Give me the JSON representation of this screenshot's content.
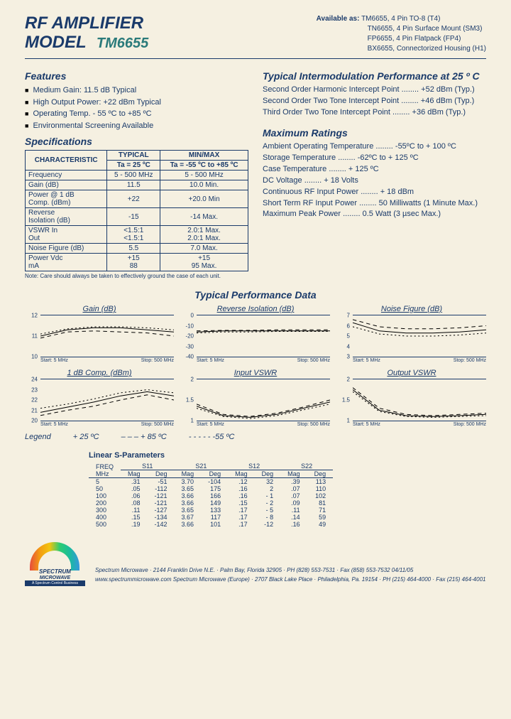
{
  "header": {
    "title_line1": "RF AMPLIFIER",
    "title_line2": "MODEL",
    "model": "TM6655",
    "available_label": "Available as:",
    "available": [
      "TM6655, 4 Pin TO-8 (T4)",
      "TN6655, 4 Pin Surface Mount (SM3)",
      "FP6655, 4 Pin Flatpack (FP4)",
      "BX6655, Connectorized Housing (H1)"
    ]
  },
  "features": {
    "title": "Features",
    "items": [
      "Medium Gain: 11.5 dB Typical",
      "High Output Power: +22 dBm Typical",
      "Operating Temp. - 55 ºC to +85 ºC",
      "Environmental Screening Available"
    ]
  },
  "specs": {
    "title": "Specifications",
    "head": [
      "CHARACTERISTIC",
      "TYPICAL",
      "MIN/MAX"
    ],
    "subhead": [
      "Ta = 25 ºC",
      "Ta = -55 ºC to +85 ºC"
    ],
    "rows": [
      [
        "Frequency",
        "5 - 500 MHz",
        "5 - 500 MHz"
      ],
      [
        "Gain (dB)",
        "11.5",
        "10.0 Min."
      ],
      [
        "Power @ 1 dB\n  Comp. (dBm)",
        "+22",
        "+20.0 Min"
      ],
      [
        "Reverse\n  Isolation (dB)",
        "-15",
        "-14 Max."
      ],
      [
        "VSWR    In\n         Out",
        "<1.5:1\n<1.5:1",
        "2.0:1 Max.\n2.0:1 Max."
      ],
      [
        "Noise Figure (dB)",
        "5.5",
        "7.0 Max."
      ],
      [
        "Power    Vdc\n          mA",
        "+15\n88",
        "+15\n95 Max."
      ]
    ],
    "note": "Note: Care should always be taken to effectively ground the case of each unit."
  },
  "intermod": {
    "title": "Typical Intermodulation Performance at 25 º C",
    "rows": [
      [
        "Second Order Harmonic Intercept Point",
        "+52 dBm (Typ.)"
      ],
      [
        "Second Order Two Tone Intercept Point",
        "+46 dBm (Typ.)"
      ],
      [
        "Third Order Two Tone Intercept Point",
        "+36 dBm (Typ.)"
      ]
    ]
  },
  "maxratings": {
    "title": "Maximum Ratings",
    "rows": [
      [
        "Ambient Operating Temperature",
        "-55ºC to + 100 ºC"
      ],
      [
        "Storage Temperature",
        "-62ºC to + 125 ºC"
      ],
      [
        "Case Temperature",
        "+ 125 ºC"
      ],
      [
        "DC Voltage",
        "+ 18 Volts"
      ],
      [
        "Continuous RF Input Power",
        "+ 18 dBm"
      ],
      [
        "Short Term RF Input Power",
        "50 Milliwatts (1 Minute Max.)"
      ],
      [
        "Maximum Peak Power",
        "0.5 Watt (3 µsec Max.)"
      ]
    ]
  },
  "perf_title": "Typical Performance Data",
  "charts": {
    "xlabel_start": "Start: 5 MHz",
    "xlabel_stop": "Stop: 500 MHz",
    "line_color_solid": "#000000",
    "line_color_dash": "#000000",
    "line_color_dot": "#000000",
    "chart_border_color": "#1a3a6a",
    "gain": {
      "title": "Gain (dB)",
      "ymin": 10,
      "ymax": 12,
      "yticks": [
        10,
        11,
        12
      ],
      "series25": [
        11.0,
        11.3,
        11.4,
        11.4,
        11.3,
        11.2
      ],
      "series85": [
        10.9,
        11.2,
        11.25,
        11.2,
        11.15,
        11.0
      ],
      "seriesm55": [
        11.1,
        11.35,
        11.45,
        11.45,
        11.4,
        11.3
      ]
    },
    "reviso": {
      "title": "Reverse Isolation (dB)",
      "ymin": -40,
      "ymax": 0,
      "yticks": [
        0,
        -10,
        -20,
        -30,
        -40
      ],
      "series25": [
        -16,
        -15,
        -15,
        -15,
        -15,
        -15
      ],
      "series85": [
        -15,
        -14.5,
        -14.5,
        -14,
        -14,
        -14
      ],
      "seriesm55": [
        -17,
        -16,
        -16,
        -15.5,
        -15.5,
        -15.5
      ]
    },
    "nf": {
      "title": "Noise Figure (dB)",
      "ymin": 3,
      "ymax": 7,
      "yticks": [
        3,
        4,
        5,
        6,
        7
      ],
      "series25": [
        6.3,
        5.5,
        5.3,
        5.3,
        5.4,
        5.6
      ],
      "series85": [
        6.6,
        5.9,
        5.7,
        5.7,
        5.8,
        6.0
      ],
      "seriesm55": [
        5.9,
        5.2,
        5.0,
        5.0,
        5.1,
        5.3
      ]
    },
    "comp": {
      "title": "1 dB Comp. (dBm)",
      "ymin": 20,
      "ymax": 24,
      "yticks": [
        20,
        21,
        22,
        23,
        24
      ],
      "series25": [
        20.8,
        21.3,
        21.8,
        22.4,
        22.8,
        22.4
      ],
      "series85": [
        20.5,
        21.0,
        21.4,
        22.0,
        22.5,
        22.0
      ],
      "seriesm55": [
        21.2,
        21.6,
        22.1,
        22.7,
        23.0,
        22.7
      ]
    },
    "invswr": {
      "title": "Input VSWR",
      "ymin": 1.0,
      "ymax": 2.0,
      "yticks": [
        1.0,
        1.5,
        2.0
      ],
      "series25": [
        1.35,
        1.12,
        1.08,
        1.15,
        1.3,
        1.45
      ],
      "series85": [
        1.4,
        1.15,
        1.1,
        1.18,
        1.33,
        1.5
      ],
      "seriesm55": [
        1.3,
        1.1,
        1.05,
        1.12,
        1.26,
        1.4
      ]
    },
    "outvswr": {
      "title": "Output VSWR",
      "ymin": 1.0,
      "ymax": 2.0,
      "yticks": [
        1.0,
        1.5,
        2.0
      ],
      "series25": [
        1.75,
        1.25,
        1.12,
        1.1,
        1.12,
        1.15
      ],
      "series85": [
        1.8,
        1.3,
        1.15,
        1.12,
        1.15,
        1.18
      ],
      "seriesm55": [
        1.7,
        1.22,
        1.1,
        1.08,
        1.1,
        1.12
      ]
    }
  },
  "legend": {
    "label": "Legend",
    "items": [
      "+ 25 ºC",
      "– – –  + 85 ºC",
      "- - - - -  -55 ºC"
    ]
  },
  "sparams": {
    "title": "Linear S-Parameters",
    "groups": [
      "S11",
      "S21",
      "S12",
      "S22"
    ],
    "sub": [
      "Mag",
      "Deg"
    ],
    "freq_label": "FREQ\nMHz",
    "rows": [
      [
        5,
        ".31",
        "-51",
        "3.70",
        "-104",
        ".12",
        "32",
        ".39",
        "113"
      ],
      [
        50,
        ".05",
        "-112",
        "3.65",
        "175",
        ".16",
        "2",
        ".07",
        "110"
      ],
      [
        100,
        ".06",
        "-121",
        "3.66",
        "166",
        ".16",
        "- 1",
        ".07",
        "102"
      ],
      [
        200,
        ".08",
        "-121",
        "3.66",
        "149",
        ".15",
        "- 2",
        ".09",
        "81"
      ],
      [
        300,
        ".11",
        "-127",
        "3.65",
        "133",
        ".17",
        "- 5",
        ".11",
        "71"
      ],
      [
        400,
        ".15",
        "-134",
        "3.67",
        "117",
        ".17",
        "- 8",
        ".14",
        "59"
      ],
      [
        500,
        ".19",
        "-142",
        "3.66",
        "101",
        ".17",
        "-12",
        ".16",
        "49"
      ]
    ]
  },
  "footer": {
    "line1": "Spectrum Microwave · 2144 Franklin Drive N.E. · Palm Bay, Florida 32905 · PH (828) 553-7531 · Fax (858) 553-7532 04/11/05",
    "line2": "www.spectrummicrowave.com  Spectrum Microwave (Europe) · 2707 Black Lake Place · Philadelphia, Pa. 19154 · PH (215) 464-4000 · Fax (215) 464-4001",
    "logo_text": "SPECTRUM",
    "logo_text2": "MICROWAVE",
    "logo_sub": "A Spectrum Control Business"
  }
}
